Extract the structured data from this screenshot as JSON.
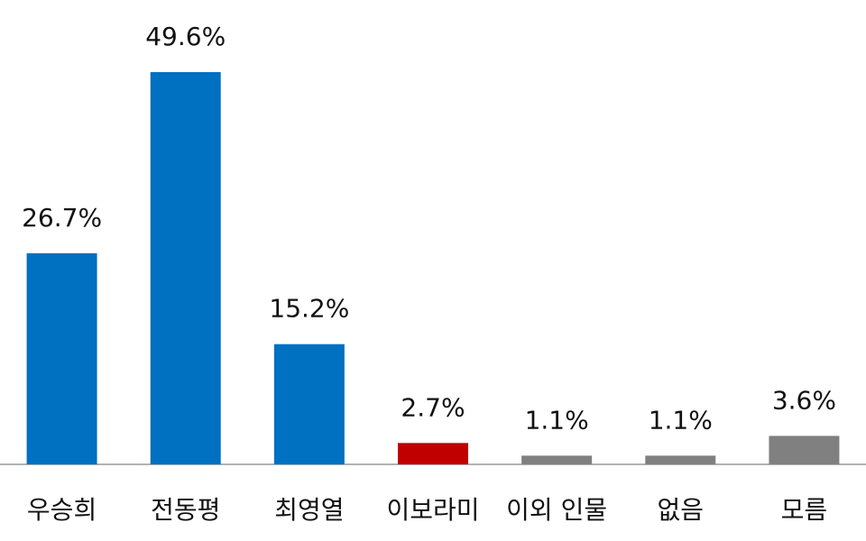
{
  "chart_data": {
    "type": "bar",
    "categories": [
      "우승희",
      "전동평",
      "최영열",
      "이보라미",
      "이외 인물",
      "없음",
      "모름"
    ],
    "values": [
      26.7,
      49.6,
      15.2,
      2.7,
      1.1,
      1.1,
      3.6
    ],
    "value_labels": [
      "26.7%",
      "49.6%",
      "15.2%",
      "2.7%",
      "1.1%",
      "1.1%",
      "3.6%"
    ],
    "colors": [
      "#0070c0",
      "#0070c0",
      "#0070c0",
      "#c00000",
      "#808080",
      "#808080",
      "#808080"
    ]
  }
}
